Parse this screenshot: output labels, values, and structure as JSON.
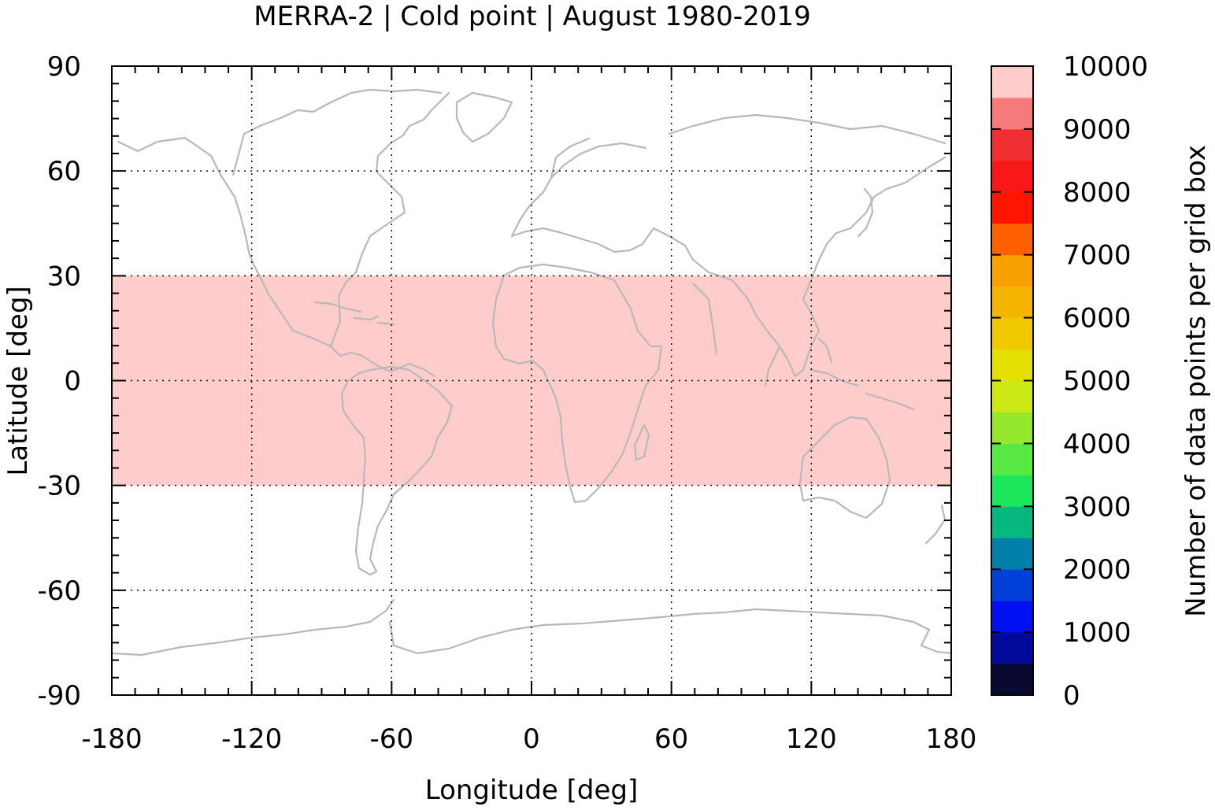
{
  "chart_data": {
    "type": "heatmap",
    "title": "MERRA-2 | Cold point | August 1980-2019",
    "xlabel": "Longitude [deg]",
    "ylabel": "Latitude [deg]",
    "xlim": [
      -180,
      180
    ],
    "ylim": [
      -90,
      90
    ],
    "xticks": [
      -180,
      -120,
      -60,
      0,
      60,
      120,
      180
    ],
    "yticks": [
      90,
      60,
      30,
      0,
      -30,
      -60,
      -90
    ],
    "grid": true,
    "grid_style": "dotted",
    "background_overlay": "coastlines",
    "coastline_color": "#b8b8b8",
    "regions": [
      {
        "lat_min": -30,
        "lat_max": 30,
        "lon_min": -180,
        "lon_max": 180,
        "value": 10000,
        "color": "#ffcccc"
      }
    ],
    "colorbar": {
      "label": "Number of data points per grid box",
      "min": 0,
      "max": 10000,
      "tick_labels": [
        "0",
        "1000",
        "2000",
        "3000",
        "4000",
        "5000",
        "6000",
        "7000",
        "8000",
        "9000",
        "10000"
      ],
      "colors": [
        "#0a0a30",
        "#00099b",
        "#0010f0",
        "#0040d8",
        "#0080a8",
        "#06b87f",
        "#1ce65a",
        "#58e844",
        "#96e82c",
        "#cce815",
        "#e6e000",
        "#f0c800",
        "#f5b400",
        "#f8a000",
        "#ff6000",
        "#ff1500",
        "#f81818",
        "#f03030",
        "#f67a7a",
        "#ffcccc"
      ]
    }
  }
}
